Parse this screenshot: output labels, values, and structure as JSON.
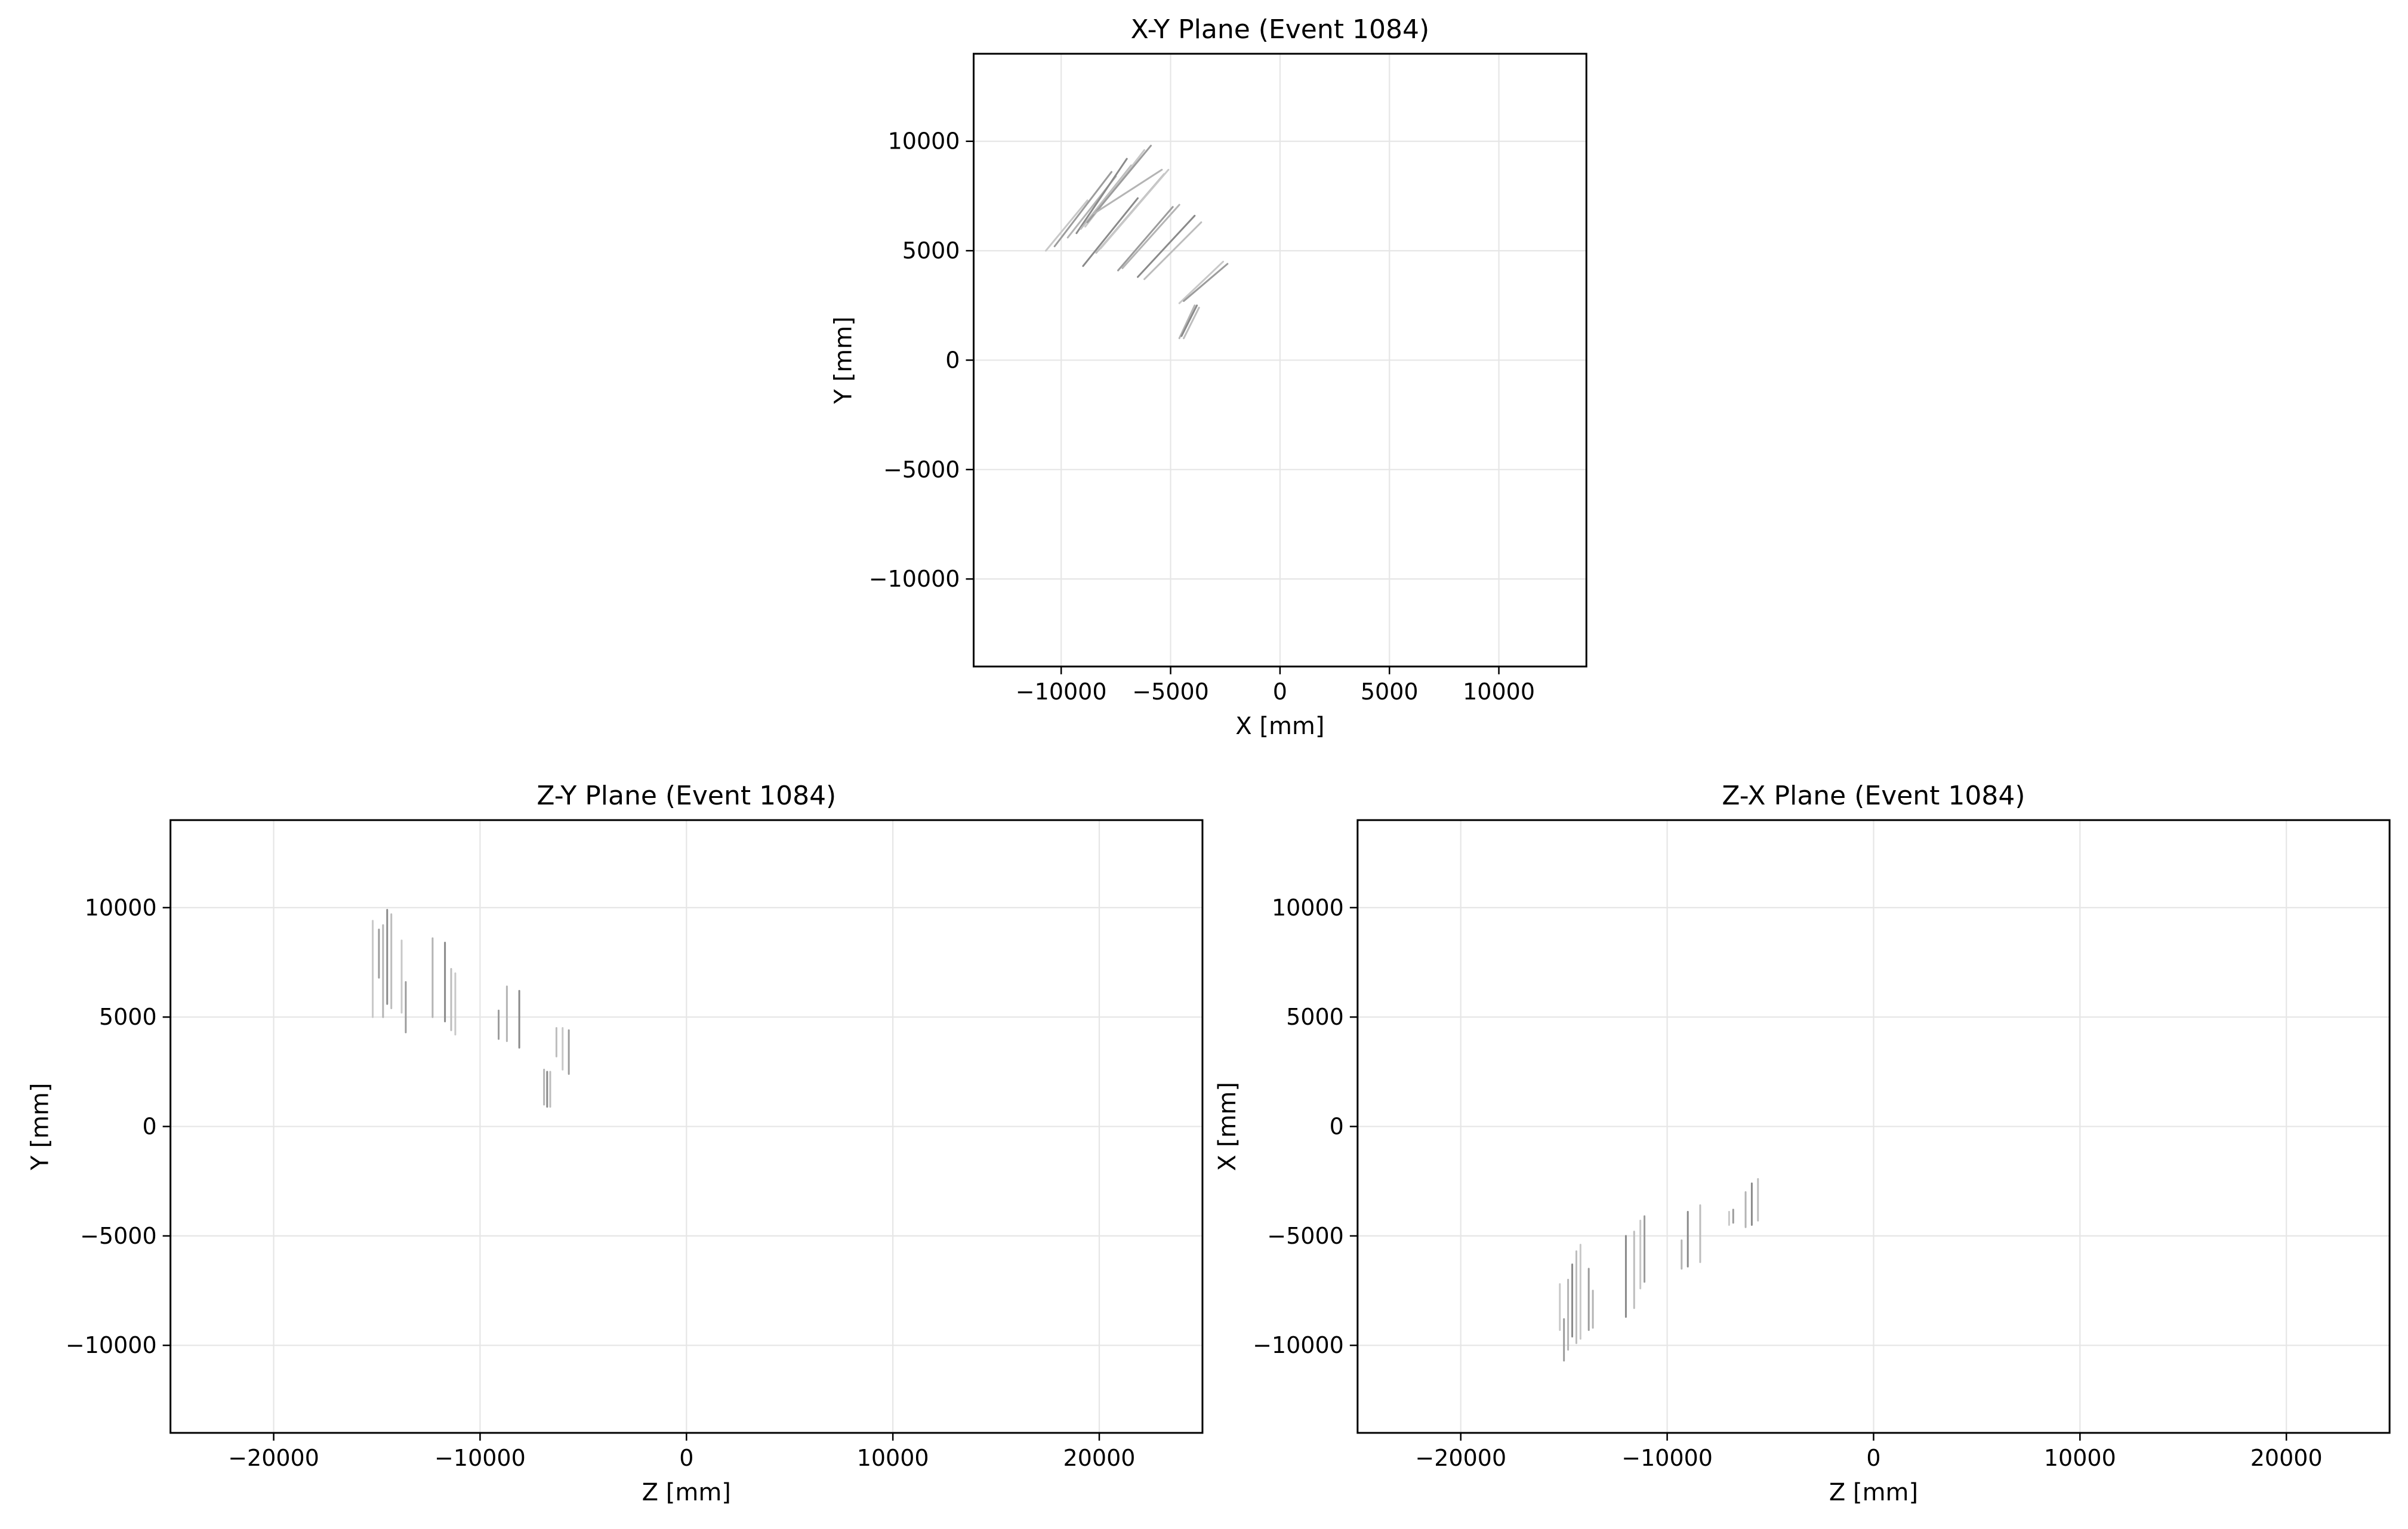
{
  "chart_data": [
    {
      "type": "line",
      "title": "X-Y Plane (Event 1084)",
      "xlabel": "X [mm]",
      "ylabel": "Y [mm]",
      "xlim": [
        -14000,
        14000
      ],
      "ylim": [
        -14000,
        14000
      ],
      "xticks": [
        -10000,
        -5000,
        0,
        5000,
        10000
      ],
      "yticks": [
        -10000,
        -5000,
        0,
        5000,
        10000
      ],
      "xtick_labels": [
        "−10000",
        "−5000",
        "0",
        "5000",
        "10000"
      ],
      "ytick_labels": [
        "−10000",
        "−5000",
        "0",
        "5000",
        "10000"
      ],
      "grid": true,
      "series": [
        {
          "x": [
            -10700,
            -8800
          ],
          "y": [
            5000,
            7300
          ]
        },
        {
          "x": [
            -10300,
            -7700
          ],
          "y": [
            5200,
            8600
          ]
        },
        {
          "x": [
            -9700,
            -7500
          ],
          "y": [
            5600,
            8400
          ]
        },
        {
          "x": [
            -9300,
            -7000
          ],
          "y": [
            5800,
            9200
          ]
        },
        {
          "x": [
            -9100,
            -6800
          ],
          "y": [
            6000,
            8900
          ]
        },
        {
          "x": [
            -8900,
            -6200
          ],
          "y": [
            6100,
            9600
          ]
        },
        {
          "x": [
            -8800,
            -5900
          ],
          "y": [
            6300,
            9800
          ]
        },
        {
          "x": [
            -8500,
            -5400
          ],
          "y": [
            6700,
            8700
          ]
        },
        {
          "x": [
            -9000,
            -6500
          ],
          "y": [
            4300,
            7400
          ]
        },
        {
          "x": [
            -8400,
            -5300
          ],
          "y": [
            4900,
            8500
          ]
        },
        {
          "x": [
            -8200,
            -5100
          ],
          "y": [
            5100,
            8700
          ]
        },
        {
          "x": [
            -7400,
            -4900
          ],
          "y": [
            4100,
            7000
          ]
        },
        {
          "x": [
            -7200,
            -4600
          ],
          "y": [
            4200,
            7100
          ]
        },
        {
          "x": [
            -6500,
            -3900
          ],
          "y": [
            3800,
            6600
          ]
        },
        {
          "x": [
            -6200,
            -3600
          ],
          "y": [
            3700,
            6300
          ]
        },
        {
          "x": [
            -4600,
            -2600
          ],
          "y": [
            2600,
            4500
          ]
        },
        {
          "x": [
            -4400,
            -2400
          ],
          "y": [
            2700,
            4400
          ]
        },
        {
          "x": [
            -4600,
            -3900
          ],
          "y": [
            1000,
            2500
          ]
        },
        {
          "x": [
            -4500,
            -3800
          ],
          "y": [
            1100,
            2500
          ]
        },
        {
          "x": [
            -4400,
            -3700
          ],
          "y": [
            1000,
            2400
          ]
        }
      ]
    },
    {
      "type": "line",
      "title": "Z-Y Plane (Event 1084)",
      "xlabel": "Z [mm]",
      "ylabel": "Y [mm]",
      "xlim": [
        -25000,
        25000
      ],
      "ylim": [
        -14000,
        14000
      ],
      "xticks": [
        -20000,
        -10000,
        0,
        10000,
        20000
      ],
      "yticks": [
        -10000,
        -5000,
        0,
        5000,
        10000
      ],
      "xtick_labels": [
        "−20000",
        "−10000",
        "0",
        "10000",
        "20000"
      ],
      "ytick_labels": [
        "−10000",
        "−5000",
        "0",
        "5000",
        "10000"
      ],
      "grid": true,
      "series": [
        {
          "x": [
            -15200,
            -15200
          ],
          "y": [
            5000,
            9400
          ]
        },
        {
          "x": [
            -14900,
            -14900
          ],
          "y": [
            6800,
            9000
          ]
        },
        {
          "x": [
            -14700,
            -14700
          ],
          "y": [
            5000,
            9200
          ]
        },
        {
          "x": [
            -14500,
            -14500
          ],
          "y": [
            5600,
            9900
          ]
        },
        {
          "x": [
            -14300,
            -14300
          ],
          "y": [
            5400,
            9700
          ]
        },
        {
          "x": [
            -13800,
            -13800
          ],
          "y": [
            5200,
            8500
          ]
        },
        {
          "x": [
            -13600,
            -13600
          ],
          "y": [
            4300,
            6600
          ]
        },
        {
          "x": [
            -12300,
            -12300
          ],
          "y": [
            5000,
            8600
          ]
        },
        {
          "x": [
            -11700,
            -11700
          ],
          "y": [
            4800,
            8400
          ]
        },
        {
          "x": [
            -11400,
            -11400
          ],
          "y": [
            4400,
            7200
          ]
        },
        {
          "x": [
            -11200,
            -11200
          ],
          "y": [
            4200,
            7000
          ]
        },
        {
          "x": [
            -9100,
            -9100
          ],
          "y": [
            4000,
            5300
          ]
        },
        {
          "x": [
            -8700,
            -8700
          ],
          "y": [
            3900,
            6400
          ]
        },
        {
          "x": [
            -8100,
            -8100
          ],
          "y": [
            3600,
            6200
          ]
        },
        {
          "x": [
            -6300,
            -6300
          ],
          "y": [
            3200,
            4500
          ]
        },
        {
          "x": [
            -6000,
            -6000
          ],
          "y": [
            2600,
            4500
          ]
        },
        {
          "x": [
            -5700,
            -5700
          ],
          "y": [
            2400,
            4400
          ]
        },
        {
          "x": [
            -6900,
            -6900
          ],
          "y": [
            1000,
            2600
          ]
        },
        {
          "x": [
            -6750,
            -6750
          ],
          "y": [
            900,
            2500
          ]
        },
        {
          "x": [
            -6600,
            -6600
          ],
          "y": [
            900,
            2500
          ]
        }
      ]
    },
    {
      "type": "line",
      "title": "Z-X Plane (Event 1084)",
      "xlabel": "Z [mm]",
      "ylabel": "X [mm]",
      "xlim": [
        -25000,
        25000
      ],
      "ylim": [
        -14000,
        14000
      ],
      "xticks": [
        -20000,
        -10000,
        0,
        10000,
        20000
      ],
      "yticks": [
        -10000,
        -5000,
        0,
        5000,
        10000
      ],
      "xtick_labels": [
        "−20000",
        "−10000",
        "0",
        "10000",
        "20000"
      ],
      "ytick_labels": [
        "−10000",
        "−5000",
        "0",
        "5000",
        "10000"
      ],
      "grid": true,
      "series": [
        {
          "x": [
            -15200,
            -15200
          ],
          "y": [
            -9300,
            -7200
          ]
        },
        {
          "x": [
            -15000,
            -15000
          ],
          "y": [
            -10700,
            -8800
          ]
        },
        {
          "x": [
            -14800,
            -14800
          ],
          "y": [
            -10200,
            -7000
          ]
        },
        {
          "x": [
            -14600,
            -14600
          ],
          "y": [
            -9600,
            -6300
          ]
        },
        {
          "x": [
            -14400,
            -14400
          ],
          "y": [
            -9900,
            -5700
          ]
        },
        {
          "x": [
            -14200,
            -14200
          ],
          "y": [
            -9700,
            -5400
          ]
        },
        {
          "x": [
            -13800,
            -13800
          ],
          "y": [
            -9300,
            -6500
          ]
        },
        {
          "x": [
            -13600,
            -13600
          ],
          "y": [
            -9200,
            -7500
          ]
        },
        {
          "x": [
            -12000,
            -12000
          ],
          "y": [
            -8700,
            -5000
          ]
        },
        {
          "x": [
            -11600,
            -11600
          ],
          "y": [
            -8300,
            -4800
          ]
        },
        {
          "x": [
            -11300,
            -11300
          ],
          "y": [
            -7400,
            -4300
          ]
        },
        {
          "x": [
            -11100,
            -11100
          ],
          "y": [
            -7100,
            -4100
          ]
        },
        {
          "x": [
            -9300,
            -9300
          ],
          "y": [
            -6500,
            -5200
          ]
        },
        {
          "x": [
            -9000,
            -9000
          ],
          "y": [
            -6400,
            -3900
          ]
        },
        {
          "x": [
            -8400,
            -8400
          ],
          "y": [
            -6200,
            -3600
          ]
        },
        {
          "x": [
            -7000,
            -7000
          ],
          "y": [
            -4500,
            -3900
          ]
        },
        {
          "x": [
            -6800,
            -6800
          ],
          "y": [
            -4400,
            -3800
          ]
        },
        {
          "x": [
            -6200,
            -6200
          ],
          "y": [
            -4600,
            -3000
          ]
        },
        {
          "x": [
            -5900,
            -5900
          ],
          "y": [
            -4500,
            -2600
          ]
        },
        {
          "x": [
            -5600,
            -5600
          ],
          "y": [
            -4300,
            -2400
          ]
        }
      ]
    }
  ]
}
